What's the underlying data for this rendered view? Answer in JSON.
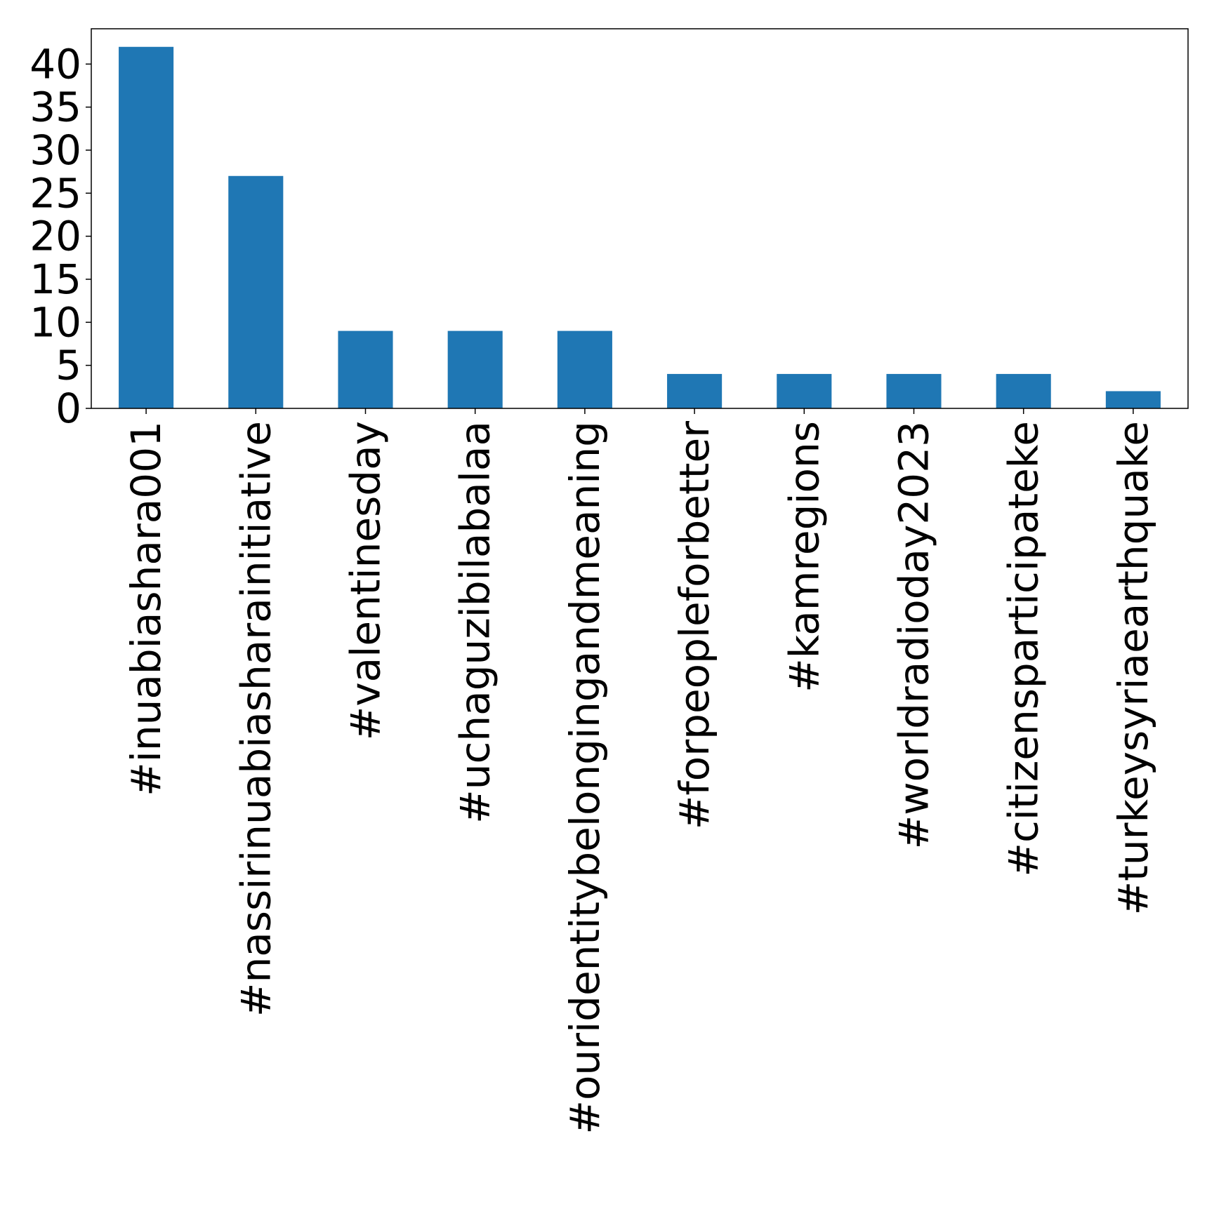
{
  "chart_data": {
    "type": "bar",
    "title": "",
    "xlabel": "",
    "ylabel": "",
    "categories": [
      "#inuabiashara001",
      "#nassirinuabiasharainitiative",
      "#valentinesday",
      "#uchaguzibilabalaa",
      "#ouridentitybelongingandmeaning",
      "#forpeopleforbetter",
      "#kamregions",
      "#worldradioday2023",
      "#citizensparticipateke",
      "#turkeysyriaearthquake"
    ],
    "values": [
      42,
      27,
      9,
      9,
      9,
      4,
      4,
      4,
      4,
      2
    ],
    "yticks": [
      0,
      5,
      10,
      15,
      20,
      25,
      30,
      35,
      40
    ],
    "ylim": [
      0,
      44.1
    ],
    "grid": false,
    "legend": "none",
    "bar_color": "#1f77b4"
  }
}
